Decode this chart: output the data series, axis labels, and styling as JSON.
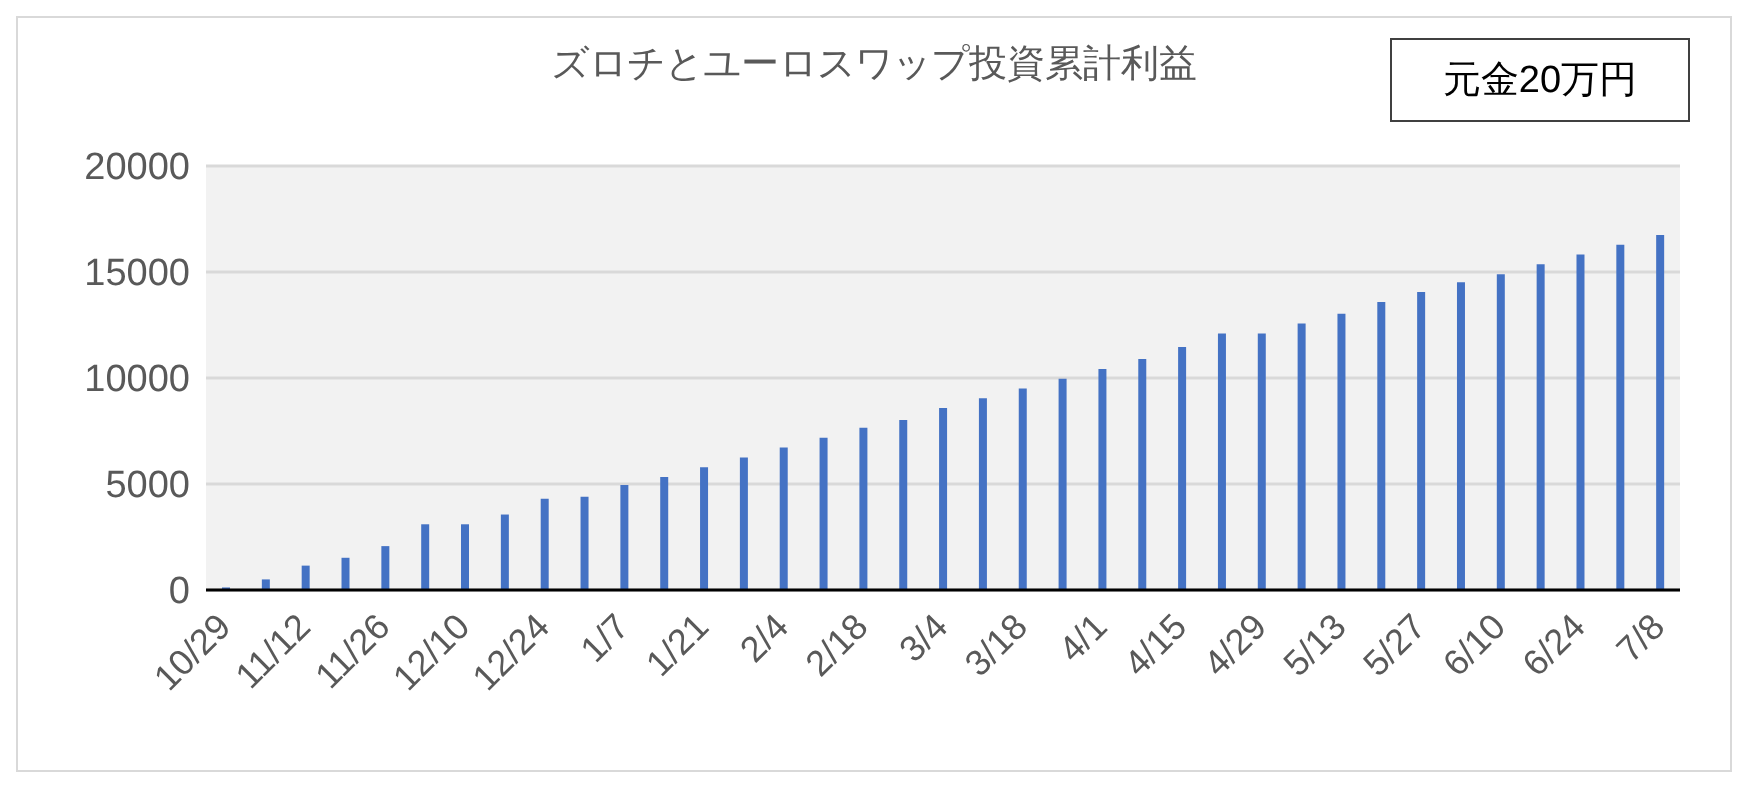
{
  "chart_data": {
    "type": "bar",
    "title": "ズロチとユーロスワップ投資累計利益",
    "annotations": [
      "元金20万円"
    ],
    "categories": [
      "10/29",
      null,
      "11/12",
      null,
      "11/26",
      null,
      "12/10",
      null,
      "12/24",
      null,
      "1/7",
      null,
      "1/21",
      null,
      "2/4",
      null,
      "2/18",
      null,
      "3/4",
      null,
      "3/18",
      null,
      "4/1",
      null,
      "4/15",
      null,
      "4/29",
      null,
      "5/13",
      null,
      "5/27",
      null,
      "6/10",
      null,
      "6/24",
      null,
      "7/8"
    ],
    "values": [
      120,
      500,
      1150,
      1520,
      2070,
      3100,
      3100,
      3560,
      4300,
      4400,
      4950,
      5330,
      5790,
      6250,
      6720,
      7180,
      7650,
      8020,
      8580,
      9040,
      9500,
      9970,
      10430,
      10900,
      11460,
      12100,
      12100,
      12570,
      13030,
      13590,
      14060,
      14520,
      14890,
      15360,
      15820,
      16290,
      16750
    ],
    "color": "#4472c4",
    "ylim": [
      0,
      20000
    ],
    "yticks": [
      0,
      5000,
      10000,
      15000,
      20000
    ],
    "grid": "y",
    "legend": false
  }
}
